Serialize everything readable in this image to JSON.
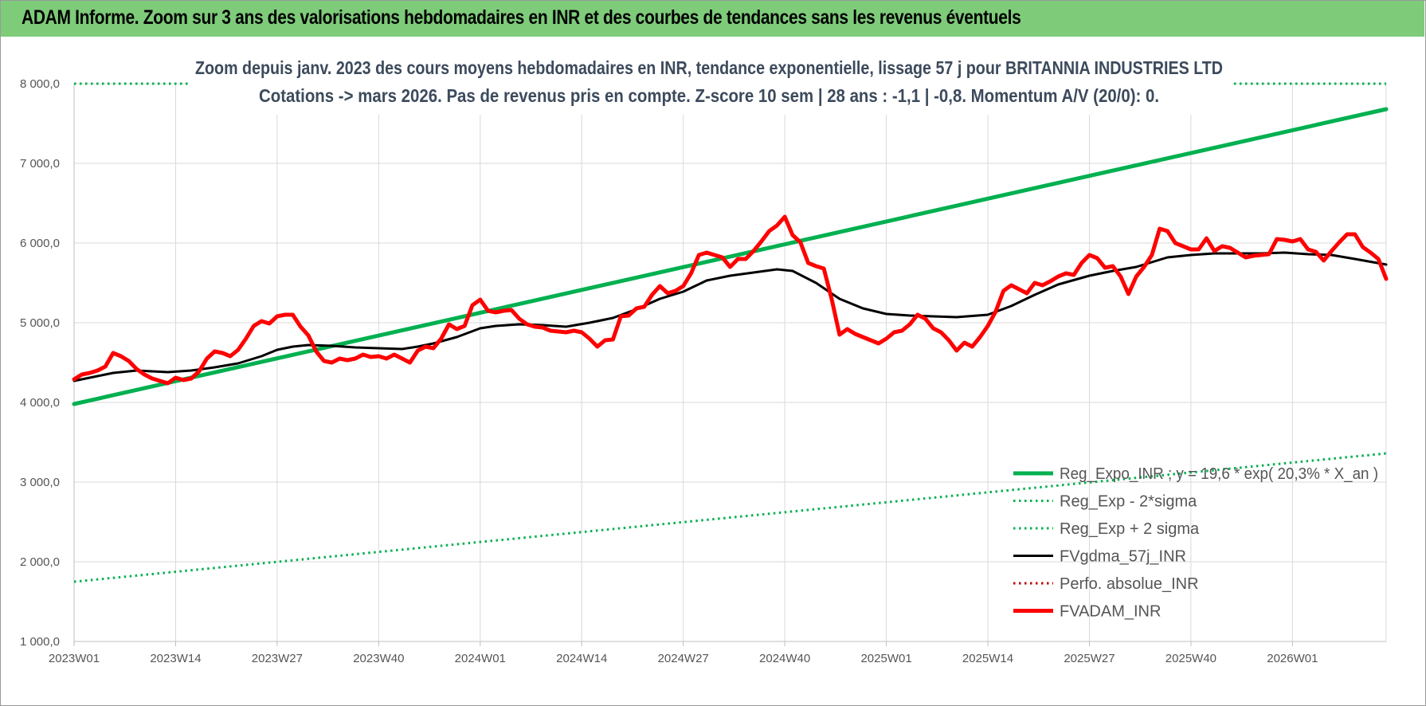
{
  "banner": {
    "title": "ADAM Informe. Zoom sur 3 ans des valorisations hebdomadaires en INR et des courbes de tendances sans les revenus éventuels"
  },
  "chart_data": {
    "type": "line",
    "title_line1": "Zoom depuis janv. 2023 des cours moyens hebdomadaires en INR, tendance exponentielle, lissage 57 j pour BRITANNIA  INDUSTRIES LTD",
    "title_line2": "Cotations -> mars 2026. Pas de revenus pris en compte. Z-score 10 sem  |  28 ans : -1,1  |  -0,8. Momentum A/V (20/0): 0.",
    "x_tick_labels": [
      "2023W01",
      "2023W14",
      "2023W27",
      "2023W40",
      "2024W01",
      "2024W14",
      "2024W27",
      "2024W40",
      "2025W01",
      "2025W14",
      "2025W27",
      "2025W40",
      "2026W01"
    ],
    "x_tick_weeks": [
      0,
      13,
      26,
      39,
      52,
      65,
      78,
      91,
      104,
      117,
      130,
      143,
      156
    ],
    "x_range_weeks": [
      0,
      168
    ],
    "ylim": [
      1000,
      8000
    ],
    "y_ticks": [
      1000,
      2000,
      3000,
      4000,
      5000,
      6000,
      7000,
      8000
    ],
    "y_tick_labels": [
      "1 000,0",
      "2 000,0",
      "3 000,0",
      "4 000,0",
      "5 000,0",
      "6 000,0",
      "7 000,0",
      "8 000,0"
    ],
    "grid": true,
    "legend_position": "bottom-right",
    "series": [
      {
        "name": "Reg_Expo_INR ; y = 19,6 * exp( 20,3% *  X_an )",
        "color": "#00b050",
        "style": "solid-thick",
        "x": [
          0,
          168
        ],
        "y": [
          3980,
          7680
        ]
      },
      {
        "name": "Reg_Exp - 2*sigma",
        "color": "#00b050",
        "style": "dotted",
        "x": [
          0,
          168
        ],
        "y": [
          1750,
          3360
        ]
      },
      {
        "name": "Reg_Exp + 2 sigma",
        "color": "#00b050",
        "style": "dotted",
        "x": [
          0,
          168
        ],
        "y": [
          8000,
          8000
        ]
      },
      {
        "name": "FVgdma_57j_INR",
        "color": "#000000",
        "style": "solid",
        "x": [
          0,
          3,
          5,
          8,
          12,
          15,
          18,
          21,
          24,
          26,
          28,
          30,
          33,
          36,
          39,
          42,
          44,
          46,
          49,
          52,
          54,
          57,
          60,
          63,
          66,
          69,
          72,
          75,
          78,
          81,
          84,
          87,
          90,
          92,
          95,
          98,
          101,
          104,
          107,
          110,
          113,
          117,
          120,
          123,
          126,
          130,
          133,
          136,
          140,
          143,
          146,
          149,
          152,
          155,
          158,
          161,
          164,
          168
        ],
        "y": [
          4270,
          4330,
          4370,
          4400,
          4380,
          4400,
          4440,
          4490,
          4580,
          4660,
          4700,
          4720,
          4710,
          4690,
          4680,
          4670,
          4700,
          4740,
          4820,
          4930,
          4960,
          4980,
          4970,
          4950,
          5000,
          5060,
          5170,
          5300,
          5390,
          5530,
          5590,
          5630,
          5670,
          5650,
          5500,
          5300,
          5180,
          5110,
          5090,
          5080,
          5070,
          5100,
          5210,
          5350,
          5480,
          5590,
          5650,
          5700,
          5820,
          5850,
          5870,
          5870,
          5870,
          5880,
          5860,
          5850,
          5800,
          5730
        ]
      },
      {
        "name": "Perfo. absolue_INR",
        "color": "#c00000",
        "style": "dotted",
        "x": [],
        "y": []
      },
      {
        "name": "FVADAM_INR",
        "color": "#ff0000",
        "style": "solid-thick",
        "x": [
          0,
          1,
          2,
          3,
          4,
          5,
          6,
          7,
          8,
          9,
          10,
          11,
          12,
          13,
          14,
          15,
          16,
          17,
          18,
          19,
          20,
          21,
          22,
          23,
          24,
          25,
          26,
          27,
          28,
          29,
          30,
          31,
          32,
          33,
          34,
          35,
          36,
          37,
          38,
          39,
          40,
          41,
          42,
          43,
          44,
          45,
          46,
          47,
          48,
          49,
          50,
          51,
          52,
          53,
          54,
          55,
          56,
          57,
          58,
          59,
          60,
          61,
          62,
          63,
          64,
          65,
          66,
          67,
          68,
          69,
          70,
          71,
          72,
          73,
          74,
          75,
          76,
          77,
          78,
          79,
          80,
          81,
          82,
          83,
          84,
          85,
          86,
          87,
          88,
          89,
          90,
          91,
          92,
          93,
          94,
          95,
          96,
          97,
          98,
          99,
          100,
          101,
          102,
          103,
          104,
          105,
          106,
          107,
          108,
          109,
          110,
          111,
          112,
          113,
          114,
          115,
          116,
          117,
          118,
          119,
          120,
          121,
          122,
          123,
          124,
          125,
          126,
          127,
          128,
          129,
          130,
          131,
          132,
          133,
          134,
          135,
          136,
          137,
          138,
          139,
          140,
          141,
          142,
          143,
          144,
          145,
          146,
          147,
          148,
          149,
          150,
          151,
          152,
          153,
          154,
          155,
          156,
          157,
          158,
          159,
          160,
          161,
          162,
          163,
          164,
          165,
          166,
          167,
          168
        ],
        "y": [
          4290,
          4350,
          4370,
          4400,
          4450,
          4620,
          4580,
          4520,
          4420,
          4350,
          4300,
          4270,
          4240,
          4310,
          4280,
          4300,
          4390,
          4550,
          4640,
          4620,
          4580,
          4660,
          4800,
          4960,
          5020,
          4990,
          5080,
          5100,
          5100,
          4950,
          4840,
          4640,
          4520,
          4500,
          4550,
          4530,
          4550,
          4600,
          4570,
          4580,
          4550,
          4600,
          4550,
          4500,
          4650,
          4700,
          4680,
          4800,
          4980,
          4920,
          4960,
          5220,
          5290,
          5150,
          5130,
          5150,
          5160,
          5050,
          4980,
          4950,
          4940,
          4900,
          4890,
          4880,
          4900,
          4880,
          4800,
          4700,
          4780,
          4790,
          5080,
          5090,
          5180,
          5200,
          5350,
          5460,
          5370,
          5400,
          5460,
          5620,
          5850,
          5880,
          5850,
          5820,
          5700,
          5800,
          5800,
          5900,
          6020,
          6150,
          6220,
          6330,
          6100,
          6010,
          5750,
          5710,
          5680,
          5300,
          4850,
          4920,
          4860,
          4820,
          4780,
          4740,
          4800,
          4880,
          4900,
          4980,
          5100,
          5050,
          4930,
          4880,
          4780,
          4650,
          4750,
          4700,
          4820,
          4960,
          5140,
          5400,
          5470,
          5420,
          5370,
          5500,
          5470,
          5520,
          5580,
          5620,
          5600,
          5750,
          5850,
          5810,
          5690,
          5710,
          5580,
          5360,
          5580,
          5700,
          5850,
          6180,
          6150,
          6000,
          5960,
          5920,
          5920,
          6060,
          5900,
          5960,
          5940,
          5880,
          5820,
          5840,
          5850,
          5860,
          6050,
          6040,
          6020,
          6050,
          5920,
          5890,
          5780,
          5900,
          6010,
          6110,
          6110,
          5950,
          5880,
          5800,
          5550
        ]
      }
    ]
  }
}
